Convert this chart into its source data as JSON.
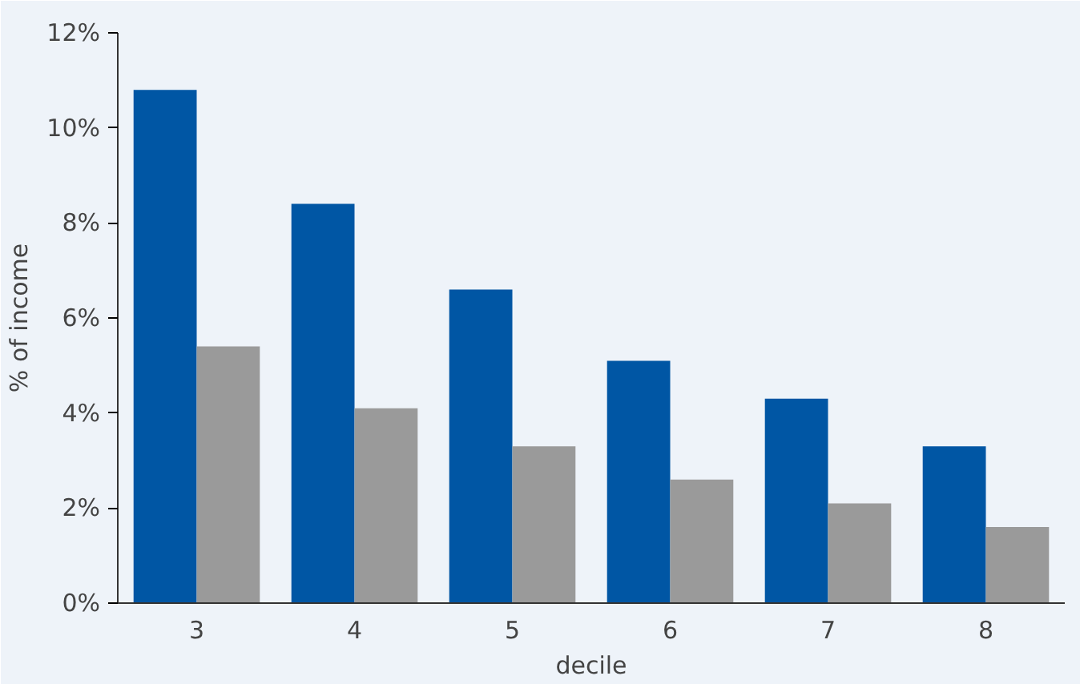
{
  "chart_data": {
    "type": "bar",
    "xlabel": "decile",
    "ylabel": "% of income",
    "categories": [
      "3",
      "4",
      "5",
      "6",
      "7",
      "8"
    ],
    "series": [
      {
        "color": "#0056a4",
        "values": [
          10.8,
          8.4,
          6.6,
          5.1,
          4.3,
          3.3
        ]
      },
      {
        "color": "#9a9a9a",
        "values": [
          5.4,
          4.1,
          3.3,
          2.6,
          2.1,
          1.6
        ]
      }
    ],
    "ylim": [
      0,
      12
    ],
    "yticks": [
      {
        "value": 0,
        "label": "0%"
      },
      {
        "value": 2,
        "label": "2%"
      },
      {
        "value": 4,
        "label": "4%"
      },
      {
        "value": 6,
        "label": "6%"
      },
      {
        "value": 8,
        "label": "8%"
      },
      {
        "value": 10,
        "label": "10%"
      },
      {
        "value": 12,
        "label": "12%"
      }
    ],
    "grid": false
  }
}
